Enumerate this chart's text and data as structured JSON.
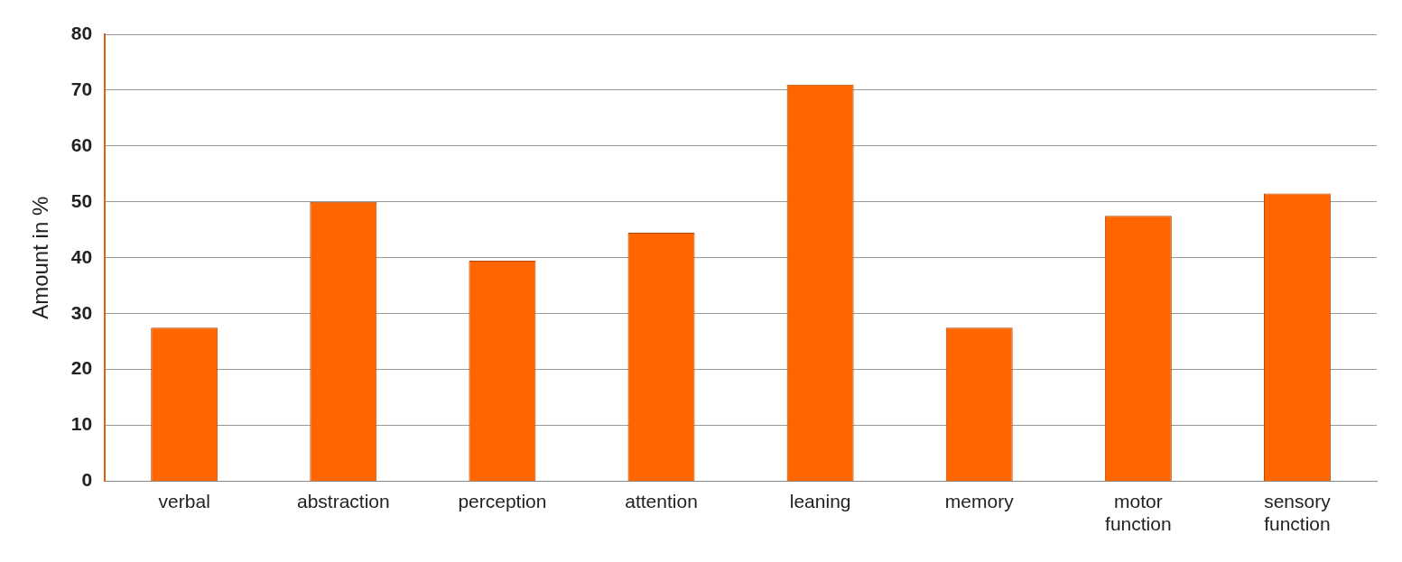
{
  "chart_data": {
    "type": "bar",
    "ylabel": "Amount in %",
    "categories": [
      "verbal",
      "abstraction",
      "perception",
      "attention",
      "leaning",
      "memory",
      "motor function",
      "sensory function"
    ],
    "values": [
      27.5,
      50,
      39.5,
      44.5,
      71,
      27.5,
      47.5,
      51.5
    ],
    "color": "#ff6600",
    "ylim": [
      0,
      80
    ],
    "yticks": [
      0,
      10,
      20,
      30,
      40,
      50,
      60,
      70,
      80
    ],
    "grid": "y",
    "legend": false
  }
}
